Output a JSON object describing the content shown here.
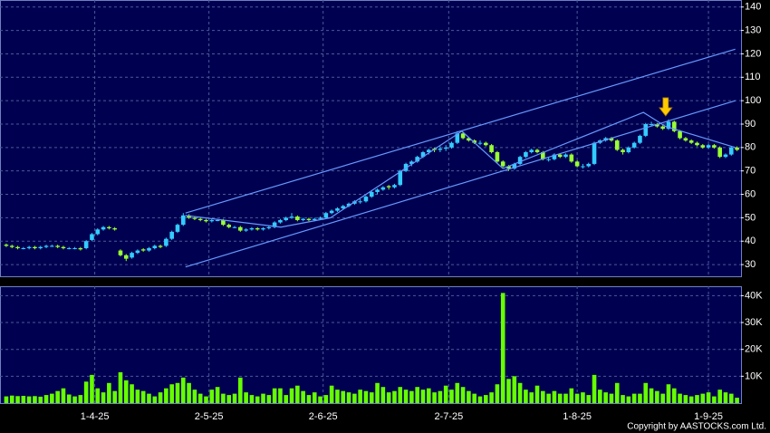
{
  "chart_data": {
    "type": "candlestick",
    "footer": "Copyright by AASTOCKS.com Ltd.",
    "xlim": [
      -1.1,
      128.7
    ],
    "xticks": [
      {
        "value": 15.5,
        "label": "1-4-25"
      },
      {
        "value": 35.5,
        "label": "2-5-25"
      },
      {
        "value": 55.5,
        "label": "2-6-25"
      },
      {
        "value": 77.5,
        "label": "2-7-25"
      },
      {
        "value": 100,
        "label": "1-8-25"
      },
      {
        "value": 123,
        "label": "1-9-25"
      }
    ],
    "ylim": [
      25,
      143
    ],
    "yticks": [
      30,
      40,
      50,
      60,
      70,
      80,
      90,
      100,
      110,
      120,
      130,
      140
    ],
    "volume_ylim": [
      0,
      43500
    ],
    "volume_yticks": [
      {
        "value": 10000,
        "label": "10K"
      },
      {
        "value": 20000,
        "label": "20K"
      },
      {
        "value": 30000,
        "label": "30K"
      },
      {
        "value": 40000,
        "label": "40K"
      }
    ],
    "grid": true,
    "up_color": "#33ccff",
    "down_color": "#99ff33",
    "volume_color": "#66ff00",
    "line_color": "#6699ff",
    "arrow_color": "#ffcc00",
    "ohlc": [
      [
        38.5,
        39,
        37.5,
        38
      ],
      [
        38,
        38.5,
        37,
        37.5
      ],
      [
        37.5,
        38,
        36.5,
        37
      ],
      [
        37,
        37.5,
        36.5,
        37
      ],
      [
        37,
        38,
        36.5,
        37.5
      ],
      [
        37.5,
        38,
        36.5,
        37
      ],
      [
        37,
        38,
        36.5,
        37.5
      ],
      [
        37.5,
        38.5,
        37,
        38
      ],
      [
        38,
        38.5,
        37.5,
        38
      ],
      [
        38,
        38.5,
        37,
        37.5
      ],
      [
        37.5,
        38,
        36.5,
        37
      ],
      [
        37,
        37.5,
        36.5,
        37
      ],
      [
        37,
        37.5,
        36.5,
        37
      ],
      [
        37,
        37.5,
        36,
        36.5
      ],
      [
        37,
        40.5,
        36.5,
        40
      ],
      [
        40.5,
        43.5,
        40,
        43
      ],
      [
        43,
        45.5,
        42.5,
        45
      ],
      [
        45,
        46.5,
        44.5,
        46
      ],
      [
        46,
        46.5,
        45,
        45.5
      ],
      [
        45.5,
        46,
        44.5,
        45
      ],
      [
        36,
        36.5,
        33.5,
        34
      ],
      [
        34,
        34.5,
        31.5,
        32.5
      ],
      [
        33,
        35.5,
        32.5,
        35
      ],
      [
        35,
        36.5,
        34.5,
        36
      ],
      [
        36.5,
        37,
        35.5,
        36
      ],
      [
        36,
        37.5,
        35.5,
        37
      ],
      [
        37,
        38.5,
        36.5,
        38
      ],
      [
        38,
        38.5,
        37,
        37.5
      ],
      [
        38,
        41.5,
        37.5,
        41
      ],
      [
        41,
        44.5,
        40.5,
        44
      ],
      [
        44,
        47.5,
        43.5,
        47
      ],
      [
        47,
        52,
        46.5,
        51
      ],
      [
        51,
        51.5,
        49.5,
        50
      ],
      [
        50,
        50.5,
        49,
        49.5
      ],
      [
        49.5,
        50,
        48.5,
        49
      ],
      [
        49,
        49.5,
        48,
        48.5
      ],
      [
        48.5,
        49.5,
        48,
        49
      ],
      [
        49,
        49.5,
        48.5,
        49
      ],
      [
        49,
        49.5,
        46.5,
        47
      ],
      [
        47,
        47.5,
        45.5,
        46
      ],
      [
        46,
        46.5,
        45.5,
        46
      ],
      [
        46,
        46.5,
        44,
        44.5
      ],
      [
        44.5,
        45.5,
        44,
        45
      ],
      [
        45,
        46,
        44.5,
        45.5
      ],
      [
        45.5,
        46,
        44.5,
        45
      ],
      [
        45,
        46,
        44.5,
        45.5
      ],
      [
        45.5,
        46.5,
        45,
        46
      ],
      [
        46,
        48.5,
        45.5,
        48
      ],
      [
        48,
        49.5,
        47.5,
        49
      ],
      [
        49,
        50.5,
        48.5,
        50
      ],
      [
        50,
        52,
        49.5,
        50.5
      ],
      [
        50.5,
        51,
        48.5,
        49
      ],
      [
        49,
        50,
        48.5,
        49.5
      ],
      [
        49.5,
        50,
        48.5,
        49
      ],
      [
        49,
        50,
        48.5,
        49.5
      ],
      [
        49.5,
        50.5,
        49,
        50
      ],
      [
        50,
        52.5,
        49.5,
        52
      ],
      [
        52,
        53.5,
        51.5,
        53
      ],
      [
        53,
        54.5,
        52.5,
        54
      ],
      [
        54,
        55.5,
        53.5,
        55
      ],
      [
        55,
        56.5,
        54.5,
        56
      ],
      [
        56,
        57.5,
        55.5,
        57
      ],
      [
        57,
        58,
        56,
        57
      ],
      [
        57,
        59.5,
        56.5,
        59
      ],
      [
        59,
        61.5,
        58.5,
        61
      ],
      [
        61,
        62.5,
        60,
        62
      ],
      [
        62,
        63.5,
        61.5,
        63
      ],
      [
        63.5,
        64,
        62,
        63
      ],
      [
        63,
        64.5,
        62.5,
        64
      ],
      [
        64,
        70.5,
        63.5,
        70
      ],
      [
        70,
        73.5,
        69.5,
        73
      ],
      [
        73,
        74.5,
        72,
        74
      ],
      [
        74,
        76.5,
        73.5,
        76
      ],
      [
        76,
        78.5,
        75.5,
        78
      ],
      [
        78,
        79.5,
        77,
        79
      ],
      [
        79.5,
        80,
        78,
        79
      ],
      [
        79,
        80.5,
        78,
        79.5
      ],
      [
        79.5,
        81,
        78.5,
        80
      ],
      [
        80,
        82.5,
        79.5,
        82
      ],
      [
        82,
        87,
        81.5,
        86
      ],
      [
        86,
        86.5,
        83.5,
        84
      ],
      [
        84,
        84.5,
        82.5,
        83
      ],
      [
        83,
        83.5,
        81.5,
        82
      ],
      [
        82,
        83,
        81,
        82
      ],
      [
        82,
        82.5,
        80.5,
        81
      ],
      [
        81,
        81.5,
        77.5,
        78
      ],
      [
        78,
        78.5,
        73.5,
        74
      ],
      [
        74,
        74.5,
        71.5,
        72
      ],
      [
        72,
        72.5,
        70,
        71
      ],
      [
        71,
        73.5,
        70.5,
        73
      ],
      [
        73,
        76.5,
        72.5,
        76
      ],
      [
        76,
        78.5,
        75.5,
        78
      ],
      [
        78,
        79.5,
        77.5,
        79
      ],
      [
        79,
        79.5,
        77.5,
        78
      ],
      [
        78,
        78.5,
        74.5,
        75
      ],
      [
        75,
        76,
        74,
        75
      ],
      [
        75,
        77.5,
        74.5,
        77
      ],
      [
        77,
        77.5,
        75.5,
        76
      ],
      [
        76,
        77.5,
        75.5,
        77
      ],
      [
        77,
        77.5,
        73.5,
        74
      ],
      [
        74,
        74.5,
        71.5,
        72
      ],
      [
        72,
        73,
        71,
        72
      ],
      [
        72,
        73.5,
        71.5,
        73
      ],
      [
        73,
        82.5,
        72.5,
        82
      ],
      [
        82,
        83.5,
        81.5,
        83
      ],
      [
        83,
        84.5,
        82.5,
        84
      ],
      [
        84,
        84.5,
        82.5,
        83
      ],
      [
        83,
        83.5,
        78.5,
        79
      ],
      [
        79,
        79.5,
        77,
        78
      ],
      [
        78,
        80.5,
        77.5,
        80
      ],
      [
        80,
        82.5,
        79.5,
        82
      ],
      [
        82,
        85.5,
        81.5,
        85
      ],
      [
        85,
        90.5,
        84.5,
        90
      ],
      [
        90,
        91,
        89,
        90
      ],
      [
        90,
        90.5,
        88.5,
        89
      ],
      [
        89,
        89.5,
        87.5,
        88
      ],
      [
        88,
        92,
        87.5,
        91
      ],
      [
        91,
        91.5,
        86.5,
        87
      ],
      [
        87,
        87.5,
        83.5,
        84
      ],
      [
        84,
        84.5,
        82.5,
        83
      ],
      [
        83,
        83.5,
        81.5,
        82
      ],
      [
        82,
        82.5,
        80.5,
        81
      ],
      [
        81,
        81.5,
        79.5,
        80
      ],
      [
        80,
        81.5,
        79.5,
        81
      ],
      [
        81,
        81.5,
        79.5,
        80
      ],
      [
        80,
        80.5,
        75.5,
        76
      ],
      [
        76,
        77.5,
        75.5,
        77
      ],
      [
        77,
        80.5,
        76.5,
        80
      ],
      [
        80,
        80.5,
        78.5,
        79
      ]
    ],
    "volume": [
      2500,
      2800,
      2600,
      2700,
      2500,
      2600,
      2400,
      3000,
      3500,
      4500,
      5500,
      3200,
      2500,
      3000,
      8000,
      10500,
      5500,
      4000,
      7500,
      4500,
      11500,
      8500,
      7000,
      5000,
      4500,
      3500,
      2500,
      4000,
      5500,
      7000,
      7500,
      9500,
      7500,
      5000,
      3500,
      2500,
      5000,
      6000,
      3500,
      3000,
      3500,
      9500,
      4000,
      3000,
      2500,
      3500,
      3000,
      5500,
      5500,
      3000,
      5500,
      6500,
      4500,
      3000,
      4000,
      2500,
      3000,
      6500,
      5000,
      4500,
      4000,
      3500,
      5000,
      4500,
      4000,
      7500,
      6000,
      4000,
      4500,
      6000,
      5000,
      4500,
      6000,
      5000,
      5500,
      4000,
      4500,
      6500,
      5000,
      7500,
      6000,
      4500,
      3500,
      2500,
      3000,
      4000,
      7000,
      41000,
      9000,
      10000,
      7500,
      5000,
      4000,
      6500,
      4500,
      3500,
      4500,
      3500,
      3500,
      5500,
      3500,
      4000,
      3000,
      10500,
      5000,
      4000,
      3500,
      7500,
      3000,
      2500,
      3500,
      3500,
      7500,
      5500,
      4500,
      3500,
      7000,
      5500,
      3500,
      3000,
      2500,
      3000,
      3500,
      4000,
      2500,
      5000,
      4000,
      3500,
      2000
    ],
    "trend_lines": [
      [
        [
          31.4,
          52
        ],
        [
          127.7,
          122
        ]
      ],
      [
        [
          31.4,
          29
        ],
        [
          127.7,
          100
        ]
      ],
      [
        [
          31.4,
          51
        ],
        [
          48.1,
          46
        ],
        [
          56.8,
          50
        ],
        [
          79.8,
          87
        ],
        [
          87,
          71
        ],
        [
          111.6,
          95
        ],
        [
          115.5,
          89
        ],
        [
          127.7,
          80
        ]
      ]
    ],
    "arrow": [
      115.5,
      93.5
    ]
  }
}
